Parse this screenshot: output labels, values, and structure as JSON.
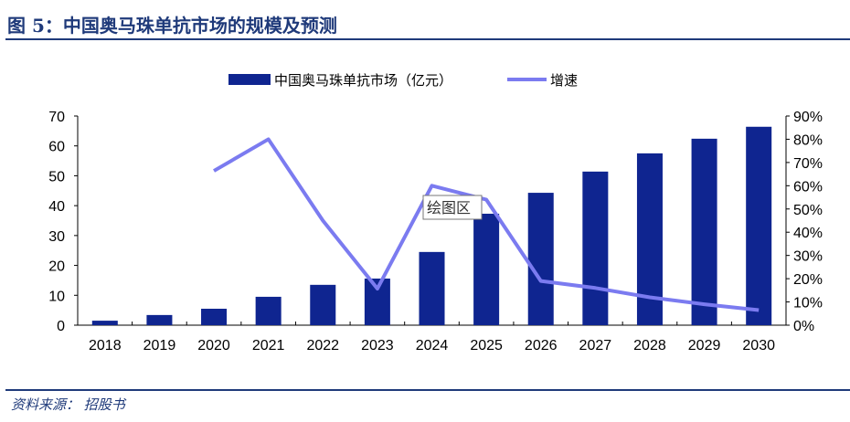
{
  "title": "图 5：中国奥马珠单抗市场的规模及预测",
  "source": "资料来源：  招股书",
  "tooltip": "绘图区",
  "colors": {
    "bar": "#0f2590",
    "line": "#7b7bf0",
    "title": "#1f3a7a"
  },
  "chart_data": {
    "type": "bar+line",
    "categories": [
      "2018",
      "2019",
      "2020",
      "2021",
      "2022",
      "2023",
      "2024",
      "2025",
      "2026",
      "2027",
      "2028",
      "2029",
      "2030"
    ],
    "series": [
      {
        "name": "中国奥马珠单抗市场（亿元）",
        "type": "bar",
        "axis": "left",
        "values": [
          1.5,
          3.4,
          5.5,
          9.5,
          13.5,
          15.6,
          24.5,
          37.3,
          44.3,
          51.4,
          57.5,
          62.4,
          66.4
        ]
      },
      {
        "name": "增速",
        "type": "line",
        "axis": "right",
        "values": [
          null,
          null,
          66.4,
          80,
          45,
          15.7,
          60,
          54,
          19,
          16,
          12,
          9,
          6.5
        ]
      }
    ],
    "left_axis": {
      "range": [
        0,
        70
      ],
      "ticks": [
        "0",
        "10",
        "20",
        "30",
        "40",
        "50",
        "60",
        "70"
      ]
    },
    "right_axis": {
      "range": [
        0,
        90
      ],
      "ticks": [
        "0%",
        "10%",
        "20%",
        "30%",
        "40%",
        "50%",
        "60%",
        "70%",
        "80%",
        "90%"
      ]
    },
    "legend": "top",
    "grid": false
  }
}
